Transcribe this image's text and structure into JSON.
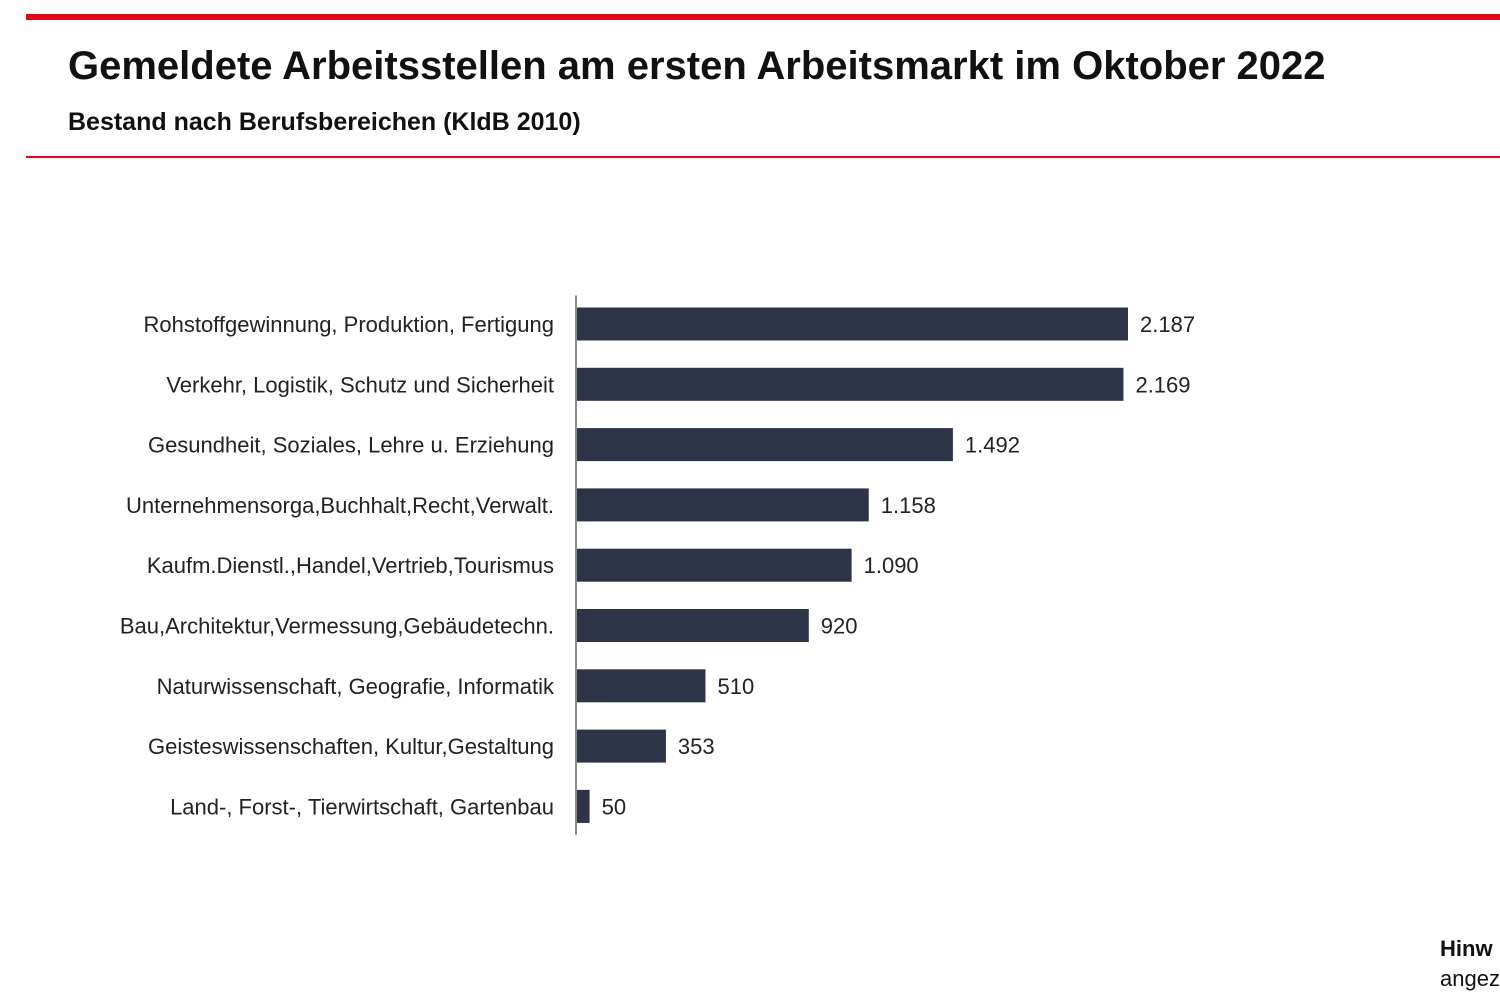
{
  "header": {
    "title": "Gemeldete Arbeitsstellen am ersten Arbeitsmarkt im Oktober 2022",
    "subtitle": "Bestand nach Berufsbereichen (KldB 2010)"
  },
  "note": {
    "heading": "Hinw",
    "text": "angez"
  },
  "colors": {
    "bar": "#2e3447",
    "accent_rule": "#e3061b",
    "axis": "#8c8c8c",
    "text": "#222222"
  },
  "chart_data": {
    "type": "bar",
    "orientation": "horizontal",
    "title": "Gemeldete Arbeitsstellen am ersten Arbeitsmarkt im Oktober 2022",
    "subtitle": "Bestand nach Berufsbereichen (KldB 2010)",
    "categories": [
      "Rohstoffgewinnung, Produktion, Fertigung",
      "Verkehr, Logistik, Schutz und Sicherheit",
      "Gesundheit, Soziales, Lehre u. Erziehung",
      "Unternehmensorga,Buchhalt,Recht,Verwalt.",
      "Kaufm.Dienstl.,Handel,Vertrieb,Tourismus",
      "Bau,Architektur,Vermessung,Gebäudetechn.",
      "Naturwissenschaft, Geografie, Informatik",
      "Geisteswissenschaften, Kultur,Gestaltung",
      "Land-, Forst-, Tierwirtschaft, Gartenbau"
    ],
    "values": [
      2187,
      2169,
      1492,
      1158,
      1090,
      920,
      510,
      353,
      50
    ],
    "data_labels": [
      "2.187",
      "2.169",
      "1.492",
      "1.158",
      "1.090",
      "920",
      "510",
      "353",
      "50"
    ],
    "xlim": [
      0,
      2500
    ],
    "grid": false,
    "legend": "none"
  }
}
